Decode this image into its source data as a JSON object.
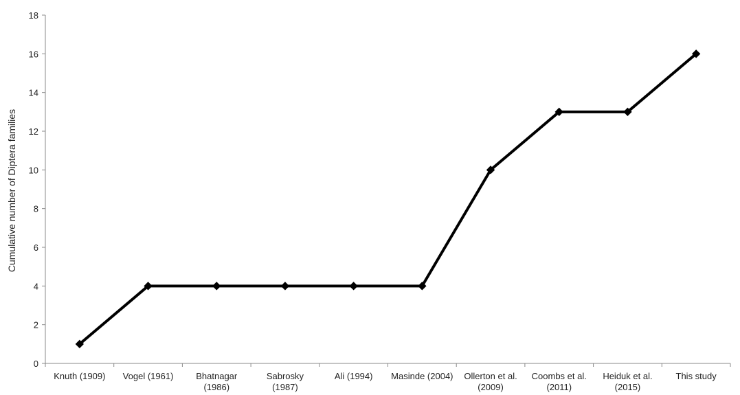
{
  "chart_data": {
    "type": "line",
    "title": "",
    "xlabel": "",
    "ylabel": "Cumulative number of Diptera families",
    "categories": [
      [
        "Knuth (1909)"
      ],
      [
        "Vogel (1961)"
      ],
      [
        "Bhatnagar",
        "(1986)"
      ],
      [
        "Sabrosky",
        "(1987)"
      ],
      [
        "Ali (1994)"
      ],
      [
        "Masinde (2004)"
      ],
      [
        "Ollerton et al.",
        "(2009)"
      ],
      [
        "Coombs et al.",
        "(2011)"
      ],
      [
        "Heiduk et al.",
        "(2015)"
      ],
      [
        "This study"
      ]
    ],
    "series": [
      {
        "values": [
          1,
          4,
          4,
          4,
          4,
          4,
          10,
          13,
          13,
          16
        ],
        "color": "#000000",
        "marker": "diamond"
      }
    ],
    "ylim": [
      0,
      18
    ],
    "yticks": [
      0,
      2,
      4,
      6,
      8,
      10,
      12,
      14,
      16,
      18
    ],
    "grid": false,
    "legend": "none"
  }
}
